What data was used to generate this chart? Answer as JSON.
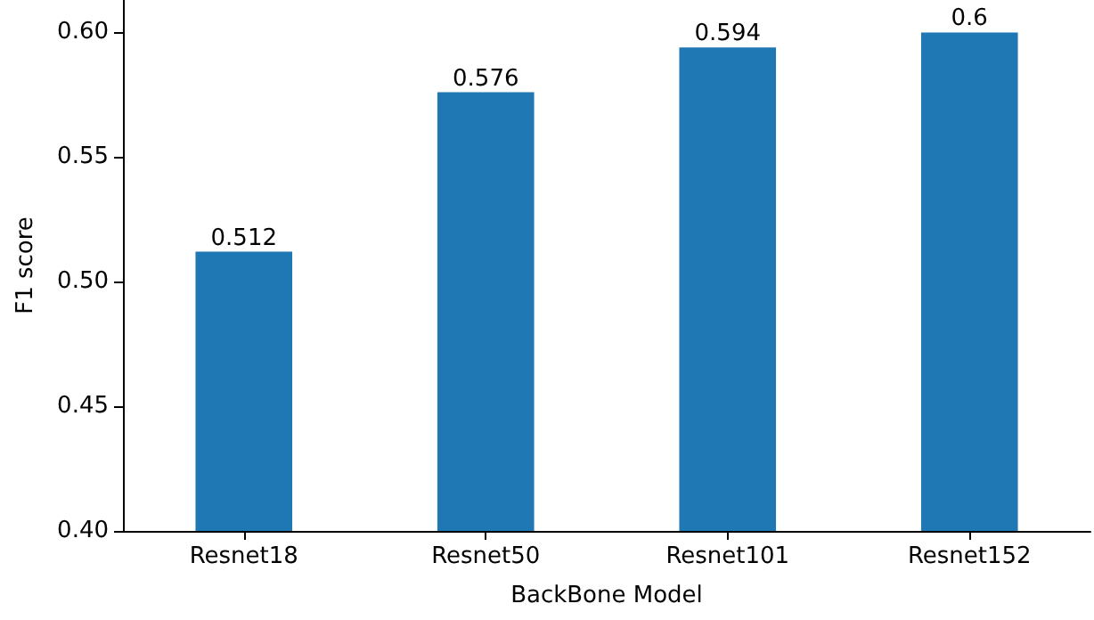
{
  "chart_data": {
    "type": "bar",
    "xlabel": "BackBone Model",
    "ylabel": "F1 score",
    "categories": [
      "Resnet18",
      "Resnet50",
      "Resnet101",
      "Resnet152"
    ],
    "values": [
      0.512,
      0.576,
      0.594,
      0.6
    ],
    "color": "#1f77b4",
    "ylim": [
      0.4,
      0.613
    ],
    "yticks": [
      {
        "value": 0.4,
        "label": "0.40"
      },
      {
        "value": 0.45,
        "label": "0.45"
      },
      {
        "value": 0.5,
        "label": "0.50"
      },
      {
        "value": 0.55,
        "label": "0.55"
      },
      {
        "value": 0.6,
        "label": "0.60"
      }
    ],
    "data_labels": true,
    "grid": false
  }
}
